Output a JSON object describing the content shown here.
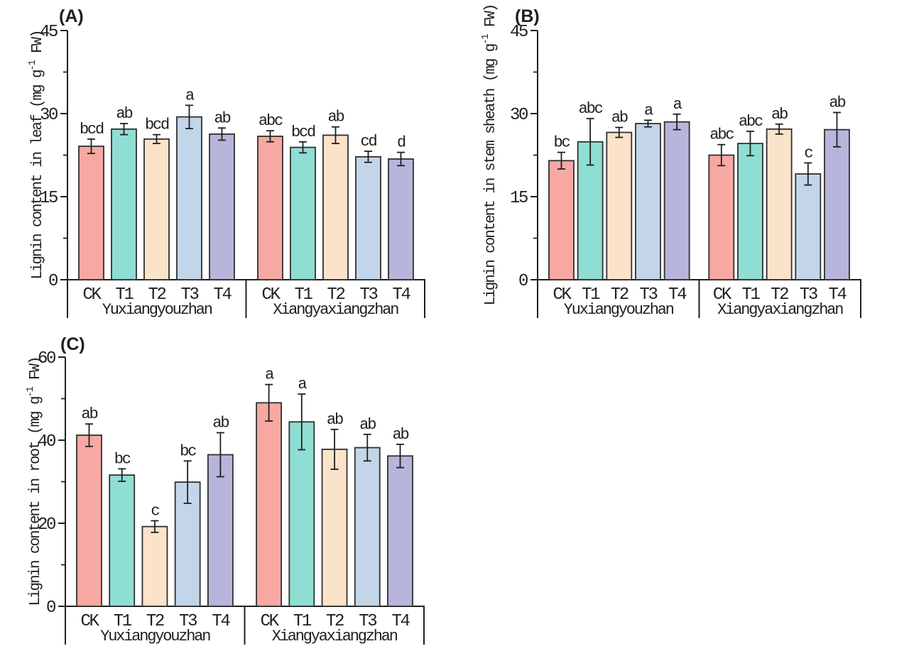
{
  "figure": {
    "background": "#ffffff",
    "axis_color": "#1f1f1f",
    "bar_outline_color": "#2f2f2f",
    "error_bar_color": "#1f1f1f",
    "treatment_colors": {
      "CK": "#F7A8A3",
      "T1": "#8FDED4",
      "T2": "#FBE3CA",
      "T3": "#C3D6E9",
      "T4": "#B7B5DB"
    }
  },
  "chart_data": [
    {
      "type": "bar",
      "panel_label": "(A)",
      "ylabel": "Lignin content in leaf (mg g⁻¹ FW)",
      "ylabel_parts": {
        "prefix": "Lignin content in leaf (mg g",
        "sup": "-1",
        "suffix": " FW)"
      },
      "xlabel": "",
      "ylim": [
        0,
        45
      ],
      "yticks": [
        0,
        15,
        30,
        45
      ],
      "yminorticks": [
        7.5,
        22.5,
        37.5
      ],
      "grid": false,
      "legend": "none",
      "categories": [
        "CK",
        "T1",
        "T2",
        "T3",
        "T4"
      ],
      "groups": [
        "Yuxiangyouzhan",
        "Xiangyaxiangzhan"
      ],
      "series": [
        {
          "group": "Yuxiangyouzhan",
          "values": [
            24.1,
            27.2,
            25.4,
            29.4,
            26.3
          ],
          "errors": [
            1.3,
            1.0,
            0.8,
            2.1,
            1.1
          ],
          "sig_letters": [
            "bcd",
            "ab",
            "bcd",
            "a",
            "ab"
          ]
        },
        {
          "group": "Xiangyaxiangzhan",
          "values": [
            25.9,
            23.9,
            26.1,
            22.2,
            21.8
          ],
          "errors": [
            1.0,
            1.0,
            1.5,
            1.0,
            1.2
          ],
          "sig_letters": [
            "abc",
            "bcd",
            "ab",
            "cd",
            "d"
          ]
        }
      ]
    },
    {
      "type": "bar",
      "panel_label": "(B)",
      "ylabel": "Lignin content in stem sheath (mg g⁻¹ FW)",
      "ylabel_parts": {
        "prefix": "Lignin content in stem sheath (mg g",
        "sup": "-1",
        "suffix": " FW)"
      },
      "xlabel": "",
      "ylim": [
        0,
        45
      ],
      "yticks": [
        0,
        15,
        30,
        45
      ],
      "yminorticks": [
        7.5,
        22.5,
        37.5
      ],
      "grid": false,
      "legend": "none",
      "categories": [
        "CK",
        "T1",
        "T2",
        "T3",
        "T4"
      ],
      "groups": [
        "Yuxiangyouzhan",
        "Xiangyaxiangzhan"
      ],
      "series": [
        {
          "group": "Yuxiangyouzhan",
          "values": [
            21.5,
            24.9,
            26.6,
            28.2,
            28.5
          ],
          "errors": [
            1.5,
            4.2,
            0.9,
            0.6,
            1.4
          ],
          "sig_letters": [
            "bc",
            "abc",
            "ab",
            "a",
            "a"
          ]
        },
        {
          "group": "Xiangyaxiangzhan",
          "values": [
            22.5,
            24.6,
            27.2,
            19.1,
            27.1
          ],
          "errors": [
            1.9,
            2.2,
            0.9,
            2.0,
            3.1
          ],
          "sig_letters": [
            "abc",
            "abc",
            "ab",
            "c",
            "ab"
          ]
        }
      ]
    },
    {
      "type": "bar",
      "panel_label": "(C)",
      "ylabel": "Lignin content in root (mg g⁻¹ FW)",
      "ylabel_parts": {
        "prefix": "Lignin content in root (mg g",
        "sup": "-1",
        "suffix": " FW)"
      },
      "xlabel": "",
      "ylim": [
        0,
        60
      ],
      "yticks": [
        0,
        20,
        40,
        60
      ],
      "yminorticks": [
        10,
        30,
        50
      ],
      "grid": false,
      "legend": "none",
      "categories": [
        "CK",
        "T1",
        "T2",
        "T3",
        "T4"
      ],
      "groups": [
        "Yuxiangyouzhan",
        "Xiangyaxiangzhan"
      ],
      "series": [
        {
          "group": "Yuxiangyouzhan",
          "values": [
            41.2,
            31.6,
            19.2,
            29.9,
            36.5
          ],
          "errors": [
            2.7,
            1.5,
            1.4,
            5.1,
            5.3
          ],
          "sig_letters": [
            "ab",
            "bc",
            "c",
            "bc",
            "ab"
          ]
        },
        {
          "group": "Xiangyaxiangzhan",
          "values": [
            49.0,
            44.4,
            37.8,
            38.2,
            36.2
          ],
          "errors": [
            4.4,
            6.7,
            4.8,
            3.2,
            2.8
          ],
          "sig_letters": [
            "a",
            "a",
            "ab",
            "ab",
            "ab"
          ]
        }
      ]
    }
  ]
}
